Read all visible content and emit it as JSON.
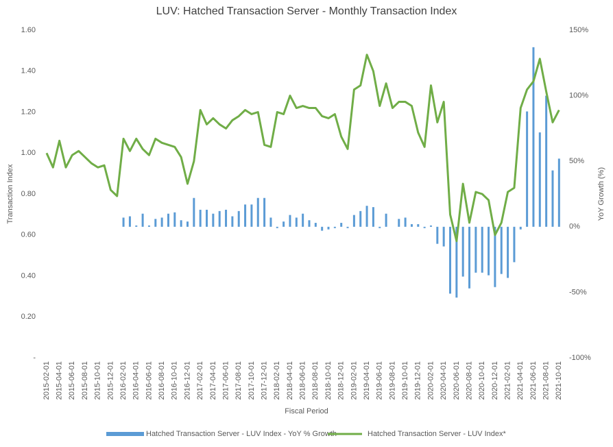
{
  "chart_data": {
    "type": "combo",
    "title": "LUV: Hatched Transaction Server - Monthly Transaction Index",
    "x_label": "Fiscal Period",
    "y_label": "Transaction Index",
    "y2_label": "YoY Growth (%)",
    "categories": [
      "2015-02-01",
      null,
      "2015-04-01",
      null,
      "2015-06-01",
      null,
      "2015-08-01",
      null,
      "2015-10-01",
      null,
      "2015-12-01",
      null,
      "2016-02-01",
      null,
      "2016-04-01",
      null,
      "2016-06-01",
      null,
      "2016-08-01",
      null,
      "2016-10-01",
      null,
      "2016-12-01",
      null,
      "2017-02-01",
      null,
      "2017-04-01",
      null,
      "2017-06-01",
      null,
      "2017-08-01",
      null,
      "2017-10-01",
      null,
      "2017-12-01",
      null,
      "2018-02-01",
      null,
      "2018-04-01",
      null,
      "2018-06-01",
      null,
      "2018-08-01",
      null,
      "2018-10-01",
      null,
      "2018-12-01",
      null,
      "2019-02-01",
      null,
      "2019-04-01",
      null,
      "2019-06-01",
      null,
      "2019-08-01",
      null,
      "2019-10-01",
      null,
      "2019-12-01",
      null,
      "2020-02-01",
      null,
      "2020-04-01",
      null,
      "2020-06-01",
      null,
      "2020-08-01",
      null,
      "2020-10-01",
      null,
      "2020-12-01",
      null,
      "2021-02-01",
      null,
      "2021-04-01",
      null,
      "2021-06-01",
      null,
      "2021-08-01",
      null,
      "2021-10-01"
    ],
    "series": [
      {
        "name": "Hatched Transaction Server - LUV Index - YoY % Growth",
        "type": "bar",
        "axis": "y2",
        "color": "#5b9bd5",
        "values": [
          null,
          null,
          null,
          null,
          null,
          null,
          null,
          null,
          null,
          null,
          null,
          null,
          7,
          8,
          1,
          10,
          1,
          6,
          7,
          10,
          11,
          5,
          4,
          22,
          13,
          13,
          10,
          12,
          13,
          8,
          12,
          17,
          17,
          22,
          22,
          7,
          -1,
          4,
          9,
          7,
          10,
          5,
          3,
          -3,
          -2,
          -1,
          3,
          -1,
          9,
          12,
          16,
          15,
          -1,
          10,
          0,
          6,
          7,
          2,
          2,
          -1,
          1,
          -13,
          -15,
          -51,
          -54,
          -38,
          -47,
          -35,
          -35,
          -37,
          -46,
          -36,
          -39,
          -27,
          -2,
          88,
          137,
          72,
          100,
          43,
          52
        ]
      },
      {
        "name": "Hatched Transaction Server - LUV Index*",
        "type": "line",
        "axis": "y",
        "color": "#70ad47",
        "values": [
          1.0,
          0.93,
          1.06,
          0.93,
          0.99,
          1.01,
          0.98,
          0.95,
          0.93,
          0.94,
          0.82,
          0.79,
          1.07,
          1.01,
          1.07,
          1.02,
          0.99,
          1.07,
          1.05,
          1.04,
          1.03,
          0.98,
          0.85,
          0.96,
          1.21,
          1.14,
          1.17,
          1.14,
          1.12,
          1.16,
          1.18,
          1.21,
          1.19,
          1.2,
          1.04,
          1.03,
          1.2,
          1.19,
          1.28,
          1.22,
          1.23,
          1.22,
          1.22,
          1.18,
          1.17,
          1.19,
          1.08,
          1.02,
          1.31,
          1.33,
          1.48,
          1.4,
          1.23,
          1.34,
          1.22,
          1.25,
          1.25,
          1.23,
          1.1,
          1.03,
          1.33,
          1.15,
          1.25,
          0.7,
          0.57,
          0.85,
          0.66,
          0.81,
          0.8,
          0.77,
          0.6,
          0.66,
          0.81,
          0.83,
          1.22,
          1.31,
          1.35,
          1.46,
          1.3,
          1.15,
          1.21
        ]
      }
    ],
    "ylim": [
      0,
      1.6
    ],
    "yticks": [
      {
        "value": 0,
        "label": "-"
      },
      {
        "value": 0.2,
        "label": "0.20"
      },
      {
        "value": 0.4,
        "label": "0.40"
      },
      {
        "value": 0.6,
        "label": "0.60"
      },
      {
        "value": 0.8,
        "label": "0.80"
      },
      {
        "value": 1.0,
        "label": "1.00"
      },
      {
        "value": 1.2,
        "label": "1.20"
      },
      {
        "value": 1.4,
        "label": "1.40"
      },
      {
        "value": 1.6,
        "label": "1.60"
      }
    ],
    "y2lim": [
      -100,
      150
    ],
    "y2ticks": [
      {
        "value": -100,
        "label": "-100%"
      },
      {
        "value": -50,
        "label": "-50%"
      },
      {
        "value": 0,
        "label": "0%"
      },
      {
        "value": 50,
        "label": "50%"
      },
      {
        "value": 100,
        "label": "100%"
      },
      {
        "value": 150,
        "label": "150%"
      }
    ],
    "grid": false,
    "legend": "bottom"
  }
}
